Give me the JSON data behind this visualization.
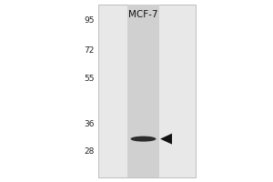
{
  "title": "MCF-7",
  "mw_markers": [
    95,
    72,
    55,
    36,
    28
  ],
  "band_mw": 31.5,
  "outer_bg": "#ffffff",
  "gel_bg": "#e8e8e8",
  "lane_color": "#d0d0d0",
  "band_color": "#1a1a1a",
  "arrow_color": "#111111",
  "marker_color": "#222222",
  "title_color": "#111111",
  "marker_fontsize": 6.5,
  "title_fontsize": 7.5
}
